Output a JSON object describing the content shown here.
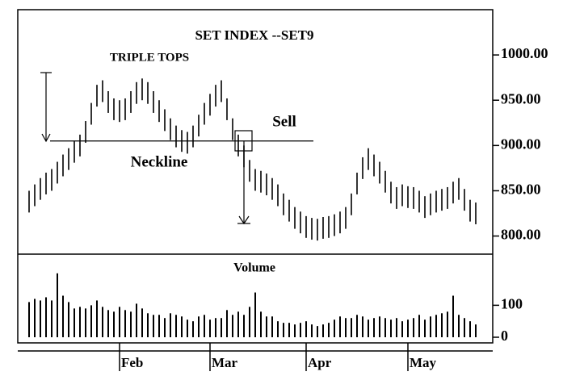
{
  "chart_data": [
    {
      "type": "ohlc",
      "title": "SET INDEX --SET9",
      "annotations": {
        "pattern": "TRIPLE TOPS",
        "signal": "Sell",
        "line": "Neckline"
      },
      "neckline": 905,
      "x": [
        0,
        1,
        2,
        3,
        4,
        5,
        6,
        7,
        8,
        9,
        10,
        11,
        12,
        13,
        14,
        15,
        16,
        17,
        18,
        19,
        20,
        21,
        22,
        23,
        24,
        25,
        26,
        27,
        28,
        29,
        30,
        31,
        32,
        33,
        34,
        35,
        36,
        37,
        38,
        39,
        40,
        41,
        42,
        43,
        44,
        45,
        46,
        47,
        48,
        49,
        50,
        51,
        52,
        53,
        54,
        55,
        56,
        57,
        58,
        59,
        60,
        61,
        62,
        63,
        64,
        65,
        66,
        67,
        68,
        69,
        70,
        71,
        72,
        73,
        74,
        75,
        76,
        77,
        78,
        79
      ],
      "high": [
        850,
        857,
        864,
        870,
        874,
        882,
        890,
        897,
        905,
        912,
        927,
        947,
        967,
        972,
        960,
        952,
        950,
        952,
        960,
        970,
        974,
        970,
        960,
        950,
        940,
        930,
        922,
        917,
        915,
        922,
        934,
        947,
        957,
        967,
        972,
        952,
        930,
        912,
        900,
        884,
        874,
        872,
        869,
        864,
        857,
        847,
        840,
        832,
        827,
        822,
        820,
        819,
        821,
        822,
        824,
        827,
        832,
        847,
        870,
        887,
        897,
        890,
        882,
        872,
        860,
        854,
        857,
        855,
        854,
        850,
        844,
        847,
        850,
        852,
        854,
        860,
        864,
        852,
        840,
        837
      ],
      "low": [
        826,
        833,
        840,
        846,
        850,
        858,
        866,
        873,
        881,
        888,
        903,
        923,
        943,
        948,
        936,
        928,
        926,
        928,
        936,
        946,
        950,
        946,
        936,
        926,
        916,
        906,
        898,
        893,
        891,
        898,
        910,
        923,
        933,
        943,
        948,
        928,
        906,
        888,
        876,
        860,
        850,
        848,
        845,
        840,
        833,
        823,
        816,
        808,
        803,
        798,
        796,
        795,
        797,
        798,
        800,
        803,
        808,
        823,
        846,
        863,
        873,
        866,
        858,
        848,
        836,
        830,
        833,
        831,
        830,
        826,
        820,
        823,
        826,
        828,
        830,
        836,
        840,
        828,
        816,
        813
      ],
      "xlim": [
        -2,
        82
      ],
      "ylim": [
        780,
        1050
      ],
      "yticks": [
        {
          "value": 800,
          "label": "800.00"
        },
        {
          "value": 850,
          "label": "850.00"
        },
        {
          "value": 900,
          "label": "900.00"
        },
        {
          "value": 950,
          "label": "950.00"
        },
        {
          "value": 1000,
          "label": "1000.00"
        }
      ],
      "color": "#000000"
    },
    {
      "type": "bar",
      "title": "Volume",
      "x": [
        0,
        1,
        2,
        3,
        4,
        5,
        6,
        7,
        8,
        9,
        10,
        11,
        12,
        13,
        14,
        15,
        16,
        17,
        18,
        19,
        20,
        21,
        22,
        23,
        24,
        25,
        26,
        27,
        28,
        29,
        30,
        31,
        32,
        33,
        34,
        35,
        36,
        37,
        38,
        39,
        40,
        41,
        42,
        43,
        44,
        45,
        46,
        47,
        48,
        49,
        50,
        51,
        52,
        53,
        54,
        55,
        56,
        57,
        58,
        59,
        60,
        61,
        62,
        63,
        64,
        65,
        66,
        67,
        68,
        69,
        70,
        71,
        72,
        73,
        74,
        75,
        76,
        77,
        78,
        79
      ],
      "values": [
        110,
        120,
        115,
        125,
        115,
        200,
        130,
        110,
        90,
        95,
        90,
        100,
        115,
        95,
        85,
        80,
        95,
        85,
        80,
        105,
        90,
        75,
        70,
        70,
        60,
        75,
        70,
        65,
        55,
        50,
        65,
        70,
        55,
        60,
        60,
        85,
        70,
        80,
        70,
        95,
        140,
        80,
        65,
        65,
        50,
        45,
        45,
        40,
        45,
        50,
        40,
        35,
        40,
        45,
        55,
        65,
        60,
        60,
        70,
        65,
        55,
        60,
        65,
        60,
        55,
        60,
        50,
        55,
        60,
        70,
        55,
        65,
        70,
        75,
        80,
        130,
        70,
        60,
        50,
        40
      ],
      "xlim": [
        -2,
        82
      ],
      "ylim": [
        0,
        260
      ],
      "yticks": [
        0,
        100
      ],
      "xticks": [
        {
          "value": 16,
          "label": "Feb"
        },
        {
          "value": 32,
          "label": "Mar"
        },
        {
          "value": 49,
          "label": "Apr"
        },
        {
          "value": 67,
          "label": "May"
        }
      ],
      "color": "#000000"
    }
  ]
}
